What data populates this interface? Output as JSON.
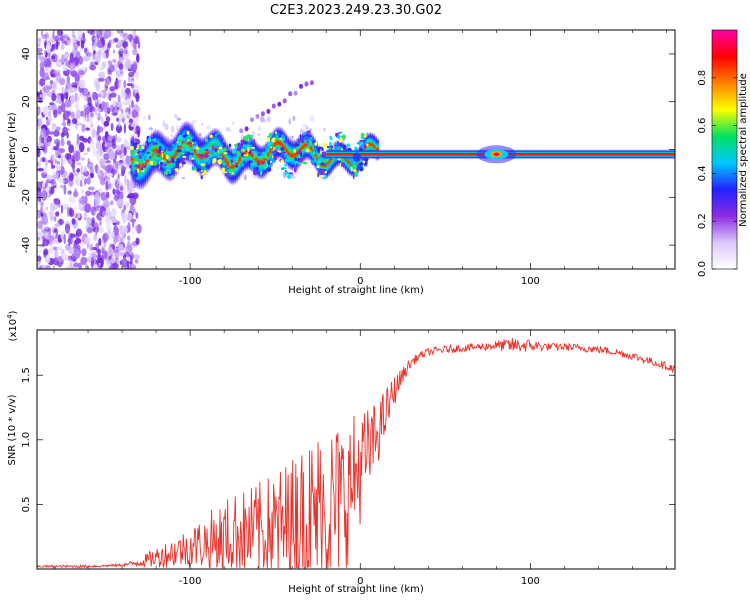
{
  "figure_title": "C2E3.2023.249.23.30.G02",
  "colors": {
    "snr_line": "#e8322c",
    "axis": "#000000"
  },
  "chart_data": [
    {
      "type": "heatmap",
      "title": "C2E3.2023.249.23.30.G02",
      "xlabel": "Height of straight line (km)",
      "ylabel": "Frequency (Hz)",
      "xlim": [
        -190,
        185
      ],
      "ylim": [
        -50,
        50
      ],
      "x_ticks": [
        -100,
        0,
        100
      ],
      "x_tick_labels": [
        "-100",
        "0",
        "100"
      ],
      "y_ticks": [
        40,
        20,
        0,
        -20,
        -40
      ],
      "y_tick_labels": [
        "40",
        "20",
        "0",
        "-20",
        "-40"
      ],
      "colorbar": {
        "label": "Normalized spectral amplitude",
        "range": [
          0,
          1
        ],
        "ticks": [
          0.0,
          0.2,
          0.4,
          0.6,
          0.8
        ],
        "tick_labels": [
          "0.0",
          "0.2",
          "0.4",
          "0.6",
          "0.8"
        ],
        "colormap": [
          "#ffffff",
          "#dcc8ff",
          "#8a2be2",
          "#2222ff",
          "#00c8ff",
          "#00e060",
          "#ffff00",
          "#ff7f00",
          "#ff0000",
          "#ff00aa"
        ]
      },
      "features": {
        "noise_region_x": [
          -190,
          -130
        ],
        "main_band_center_hz": -2,
        "main_band_start_x": -135,
        "peak_blob_x": 80
      }
    },
    {
      "type": "line",
      "xlabel": "Height of straight line (km)",
      "ylabel": "SNR (10 * v/v)",
      "y_multiplier_label": "(x10",
      "y_multiplier_exp": "4",
      "y_multiplier_close": ")",
      "xlim": [
        -190,
        185
      ],
      "ylim": [
        0,
        1.85
      ],
      "x_ticks": [
        -100,
        0,
        100
      ],
      "x_tick_labels": [
        "-100",
        "0",
        "100"
      ],
      "y_ticks": [
        0.5,
        1.0,
        1.5
      ],
      "y_tick_labels": [
        "0.5",
        "1.0",
        "1.5"
      ],
      "series": [
        {
          "name": "SNR",
          "x": [
            -190,
            -160,
            -140,
            -130,
            -125,
            -120,
            -110,
            -100,
            -90,
            -80,
            -70,
            -60,
            -50,
            -40,
            -30,
            -20,
            -10,
            -5,
            0,
            5,
            10,
            15,
            20,
            25,
            30,
            35,
            40,
            50,
            60,
            70,
            80,
            90,
            100,
            110,
            120,
            130,
            140,
            150,
            160,
            170,
            180,
            185
          ],
          "values": [
            0.02,
            0.02,
            0.03,
            0.05,
            0.07,
            0.09,
            0.13,
            0.17,
            0.21,
            0.25,
            0.27,
            0.29,
            0.31,
            0.33,
            0.4,
            0.45,
            0.55,
            0.65,
            0.8,
            0.9,
            1.05,
            1.2,
            1.38,
            1.5,
            1.6,
            1.65,
            1.68,
            1.7,
            1.71,
            1.72,
            1.73,
            1.73,
            1.73,
            1.72,
            1.72,
            1.71,
            1.7,
            1.68,
            1.65,
            1.61,
            1.57,
            1.55
          ],
          "noise_amplitude": [
            0.01,
            0.01,
            0.01,
            0.03,
            0.06,
            0.08,
            0.12,
            0.16,
            0.22,
            0.3,
            0.34,
            0.38,
            0.45,
            0.55,
            0.62,
            0.7,
            0.6,
            0.55,
            0.45,
            0.35,
            0.25,
            0.2,
            0.12,
            0.06,
            0.04,
            0.03,
            0.03,
            0.03,
            0.03,
            0.03,
            0.04,
            0.06,
            0.05,
            0.03,
            0.03,
            0.03,
            0.03,
            0.03,
            0.03,
            0.03,
            0.03,
            0.03
          ]
        }
      ]
    }
  ]
}
